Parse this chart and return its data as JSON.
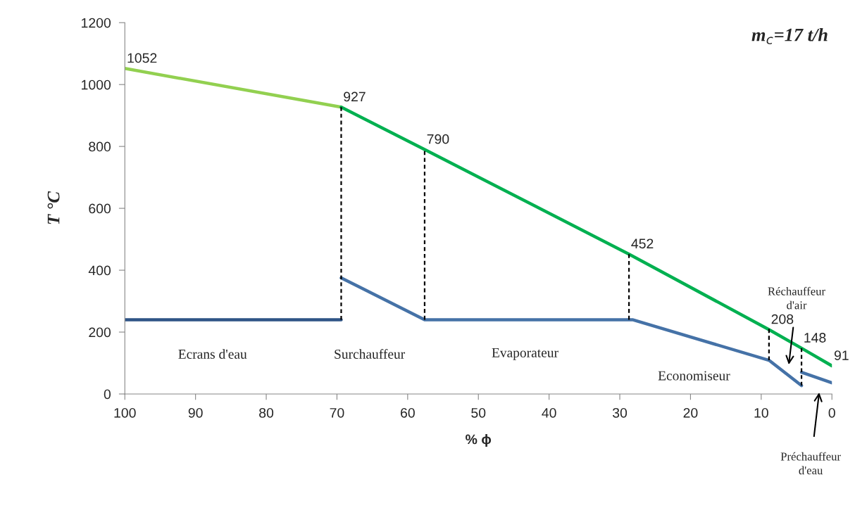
{
  "chart_data": {
    "type": "line",
    "title": "m$_{c}$=17 t/h",
    "xlabel": "% ϕ",
    "ylabel": "T °C",
    "xlim": [
      100,
      0
    ],
    "xticks": [
      100,
      90,
      80,
      70,
      60,
      50,
      40,
      30,
      20,
      10,
      0
    ],
    "ylim": [
      0,
      1200
    ],
    "yticks": [
      0,
      200,
      400,
      600,
      800,
      1000,
      1200
    ],
    "grid": false,
    "legend": false,
    "marker": "none",
    "series": [
      {
        "color": "#92d050",
        "x": [
          100,
          69.4
        ],
        "values": [
          1052,
          927
        ],
        "value_labels": [
          "1052",
          null
        ]
      },
      {
        "color": "#00b050",
        "x": [
          69.4,
          57.6,
          28.7,
          8.9,
          4.3,
          0
        ],
        "values": [
          927,
          790,
          452,
          208,
          148,
          91
        ],
        "value_labels": [
          "927",
          "790",
          "452",
          "208",
          "148",
          "91"
        ]
      },
      {
        "color": "#2f5486",
        "x": [
          100,
          69.4
        ],
        "values": [
          240,
          240
        ]
      },
      {
        "color": "#4572a7",
        "x": [
          69.4,
          57.6,
          28.2,
          8.9,
          4.3
        ],
        "values": [
          375,
          240,
          240,
          109,
          27
        ]
      },
      {
        "color": "#4572a7",
        "x": [
          4.3,
          0
        ],
        "values": [
          70,
          36
        ]
      },
      {
        "color": "#000000",
        "line_style": "dashed",
        "x": [
          69.4,
          69.4
        ],
        "values": [
          927,
          240
        ]
      },
      {
        "color": "#000000",
        "line_style": "dashed",
        "x": [
          57.6,
          57.6
        ],
        "values": [
          785,
          240
        ]
      },
      {
        "color": "#000000",
        "line_style": "dashed",
        "x": [
          28.7,
          28.7
        ],
        "values": [
          452,
          240
        ]
      },
      {
        "color": "#000000",
        "line_style": "dashed",
        "x": [
          8.9,
          8.9
        ],
        "values": [
          210,
          109
        ]
      },
      {
        "color": "#000000",
        "line_style": "dashed",
        "x": [
          4.3,
          4.3
        ],
        "values": [
          148,
          27
        ]
      }
    ],
    "annotations": [
      "Ecrans d'eau",
      "Surchauffeur",
      "Evaporateur",
      "Economiseur",
      "Réchauffeur\nd'air",
      "Préchauffeur\nd'eau"
    ]
  }
}
